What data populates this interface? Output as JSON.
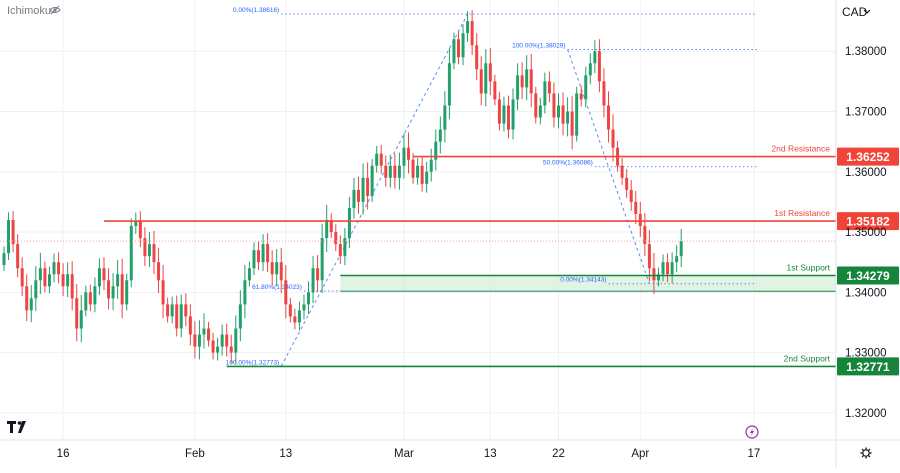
{
  "header": {
    "indicator_label": "Ichimoku",
    "currency_label": "CAD"
  },
  "colors": {
    "up": "#22a06b",
    "down": "#ef4444",
    "resistance": "#f04438",
    "support": "#16853b",
    "support_zone": "#d7f0da",
    "fib_line": "#5b8def",
    "fib_text": "#2962ff",
    "grid": "#eef1f4",
    "axis_text": "#131722",
    "last_price": "#f5a0a0"
  },
  "chart_data": {
    "type": "candlestick",
    "symbol_currency": "CAD",
    "x_tick_labels": [
      "16",
      "Feb",
      "13",
      "Mar",
      "13",
      "22",
      "Apr",
      "17"
    ],
    "x_ticks_index": [
      13,
      42,
      62,
      88,
      107,
      122,
      140,
      165
    ],
    "y_ticks": [
      1.32,
      1.33,
      1.34,
      1.35,
      1.36,
      1.37,
      1.38
    ],
    "y_tick_labels": [
      "1.32000",
      "1.33000",
      "1.34000",
      "1.35000",
      "1.36000",
      "1.37000",
      "1.38000"
    ],
    "ylim": [
      1.3155,
      1.3885
    ],
    "grid": true,
    "last_price": 1.3485,
    "levels": [
      {
        "name": "2nd Resistance",
        "value": 1.36252,
        "value_label": "1.36252",
        "kind": "resistance"
      },
      {
        "name": "1st Resistance",
        "value": 1.35182,
        "value_label": "1.35182",
        "kind": "resistance"
      },
      {
        "name": "1st Support",
        "value": 1.34279,
        "value_label": "1.34279",
        "kind": "support"
      },
      {
        "name": "2nd Support",
        "value": 1.32771,
        "value_label": "1.32771",
        "kind": "support"
      }
    ],
    "support_zone": [
      1.34018,
      1.34279
    ],
    "fib_annotations": [
      {
        "label": "0.00%(1.38616)",
        "value": 1.38616,
        "x_start": 61,
        "x_end": 165
      },
      {
        "label": "100.00%(1.38029)",
        "value": 1.38029,
        "x_start": 124,
        "x_end": 165
      },
      {
        "label": "50.00%(1.36086)",
        "value": 1.36086,
        "x_start": 130,
        "x_end": 165
      },
      {
        "label": "61.80%(1.34023)",
        "value": 1.34023,
        "x_start": 66,
        "x_end": 165
      },
      {
        "label": "0.00%(1.34143)",
        "value": 1.34143,
        "x_start": 133,
        "x_end": 165
      },
      {
        "label": "100.00%(1.32773)",
        "value": 1.32773,
        "x_start": 61,
        "x_end": 165
      }
    ],
    "fib_diagonals": [
      {
        "from": {
          "i": 61,
          "v": 1.32773
        },
        "to": {
          "i": 102,
          "v": 1.38616
        }
      },
      {
        "from": {
          "i": 124,
          "v": 1.38029
        },
        "to": {
          "i": 142,
          "v": 1.34143
        }
      }
    ],
    "closes": [
      1.3465,
      1.352,
      1.348,
      1.344,
      1.341,
      1.337,
      1.339,
      1.342,
      1.344,
      1.341,
      1.343,
      1.345,
      1.343,
      1.341,
      1.343,
      1.339,
      1.334,
      1.337,
      1.34,
      1.338,
      1.341,
      1.344,
      1.342,
      1.339,
      1.341,
      1.343,
      1.338,
      1.342,
      1.351,
      1.3518,
      1.349,
      1.346,
      1.348,
      1.345,
      1.342,
      1.338,
      1.336,
      1.338,
      1.334,
      1.338,
      1.336,
      1.333,
      1.331,
      1.333,
      1.334,
      1.332,
      1.33,
      1.331,
      1.333,
      1.331,
      1.33,
      1.334,
      1.338,
      1.342,
      1.344,
      1.347,
      1.345,
      1.348,
      1.345,
      1.343,
      1.345,
      1.342,
      1.338,
      1.336,
      1.335,
      1.337,
      1.338,
      1.34,
      1.344,
      1.342,
      1.349,
      1.352,
      1.35,
      1.348,
      1.346,
      1.349,
      1.354,
      1.357,
      1.355,
      1.359,
      1.356,
      1.361,
      1.363,
      1.361,
      1.359,
      1.361,
      1.359,
      1.361,
      1.364,
      1.362,
      1.359,
      1.361,
      1.358,
      1.36,
      1.362,
      1.365,
      1.367,
      1.371,
      1.378,
      1.382,
      1.379,
      1.383,
      1.385,
      1.381,
      1.377,
      1.373,
      1.378,
      1.375,
      1.372,
      1.368,
      1.371,
      1.367,
      1.372,
      1.376,
      1.374,
      1.377,
      1.373,
      1.369,
      1.371,
      1.375,
      1.373,
      1.369,
      1.371,
      1.368,
      1.37,
      1.366,
      1.373,
      1.372,
      1.376,
      1.378,
      1.38,
      1.375,
      1.371,
      1.367,
      1.364,
      1.361,
      1.359,
      1.357,
      1.355,
      1.353,
      1.351,
      1.348,
      1.344,
      1.342,
      1.343,
      1.345,
      1.343,
      1.345,
      1.346,
      1.3485
    ]
  }
}
